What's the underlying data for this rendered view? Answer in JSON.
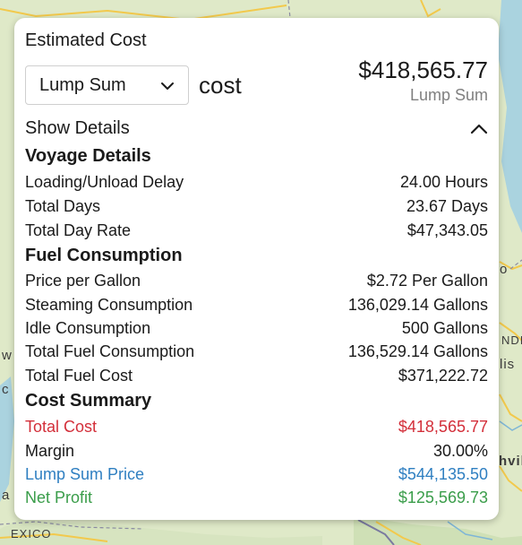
{
  "map": {
    "labels": {
      "mexico": "EXICO",
      "india": "NDIA",
      "is": "lis",
      "o": "o",
      "hvil": "hvil",
      "w": "w",
      "c": "c",
      "a": "a"
    },
    "colors": {
      "land": "#dfe9c8",
      "water": "#aad3df",
      "road": "#f2c94c",
      "border": "#8c8ca3"
    }
  },
  "panel": {
    "title": "Estimated Cost",
    "pricing_select": {
      "value": "Lump Sum"
    },
    "cost_word": "cost",
    "total": {
      "amount": "$418,565.77",
      "caption": "Lump Sum"
    },
    "details_toggle": {
      "label": "Show Details",
      "icon": "chevron-up-icon"
    },
    "sections": {
      "voyage": {
        "title": "Voyage Details",
        "rows": [
          {
            "label": "Loading/Unload Delay",
            "value": "24.00 Hours"
          },
          {
            "label": "Total Days",
            "value": "23.67 Days"
          },
          {
            "label": "Total Day Rate",
            "value": "$47,343.05"
          }
        ]
      },
      "fuel": {
        "title": "Fuel Consumption",
        "rows": [
          {
            "label": "Price per Gallon",
            "value": "$2.72 Per Gallon"
          },
          {
            "label": "Steaming Consumption",
            "value": "136,029.14 Gallons"
          },
          {
            "label": "Idle Consumption",
            "value": "500 Gallons"
          },
          {
            "label": "Total Fuel Consumption",
            "value": "136,529.14 Gallons"
          },
          {
            "label": "Total Fuel Cost",
            "value": "$371,222.72"
          }
        ]
      },
      "summary": {
        "title": "Cost Summary",
        "rows": [
          {
            "label": "Total Cost",
            "value": "$418,565.77",
            "color": "#d32f3a"
          },
          {
            "label": "Margin",
            "value": "30.00%",
            "color": "#1a1a1a"
          },
          {
            "label": "Lump Sum Price",
            "value": "$544,135.50",
            "color": "#2f7fc1"
          },
          {
            "label": "Net Profit",
            "value": "$125,569.73",
            "color": "#3a9d4a"
          }
        ]
      }
    }
  }
}
